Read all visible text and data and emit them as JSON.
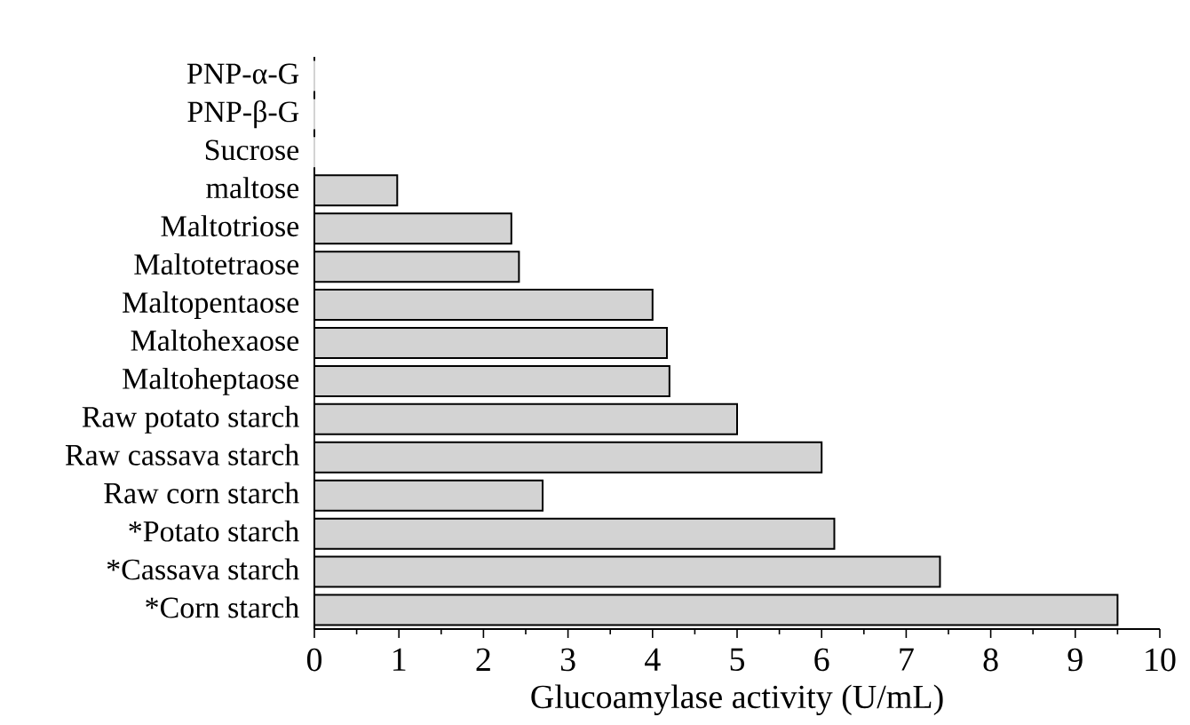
{
  "chart_data": {
    "type": "bar",
    "orientation": "horizontal",
    "categories": [
      "PNP-α-G",
      "PNP-β-G",
      "Sucrose",
      "maltose",
      "Maltotriose",
      "Maltotetraose",
      "Maltopentaose",
      "Maltohexaose",
      "Maltoheptaose",
      "Raw potato starch",
      "Raw cassava starch",
      "Raw corn starch",
      "*Potato starch",
      "*Cassava starch",
      "*Corn starch"
    ],
    "values": [
      0,
      0,
      0,
      0.98,
      2.33,
      2.42,
      4.0,
      4.17,
      4.2,
      5.0,
      6.0,
      2.7,
      6.15,
      7.4,
      9.5
    ],
    "color": "#d3d3d3",
    "xlim": [
      0,
      10
    ],
    "xticks": [
      0,
      1,
      2,
      3,
      4,
      5,
      6,
      7,
      8,
      9,
      10
    ],
    "xlabel": "Glucoamylase activity (U/mL)"
  }
}
